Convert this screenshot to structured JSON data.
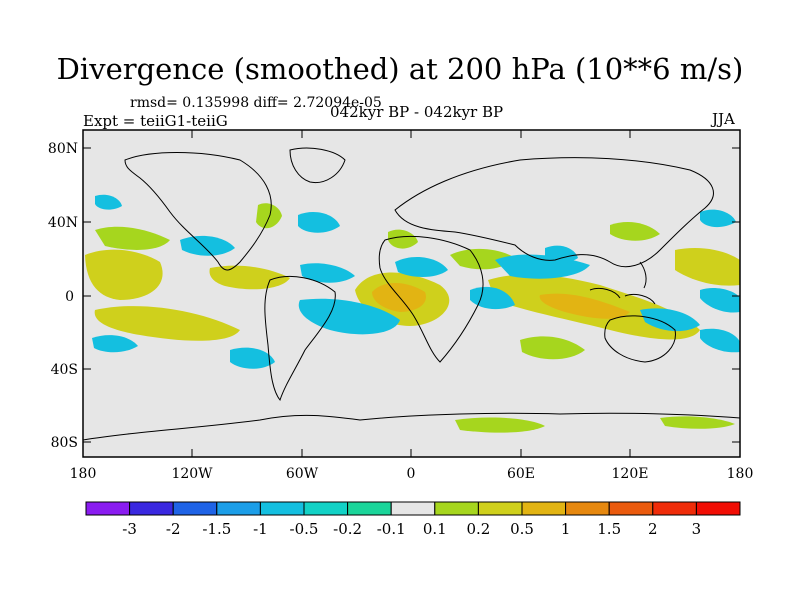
{
  "title": "Divergence (smoothed) at 200 hPa (10**6 m/s)",
  "stats": "rmsd= 0.135998 diff= 2.72094e-05",
  "expt": "Expt = teiiG1-teiiG",
  "center_label": "042kyr BP - 042kyr BP",
  "season": "JJA",
  "y_ticks": [
    "80N",
    "40N",
    "0",
    "40S",
    "80S"
  ],
  "x_ticks": [
    "180",
    "120W",
    "60W",
    "0",
    "60E",
    "120E",
    "180"
  ],
  "colorbar": {
    "labels": [
      "-3",
      "-2",
      "-1.5",
      "-1",
      "-0.5",
      "-0.2",
      "-0.1",
      "0.1",
      "0.2",
      "0.5",
      "1",
      "1.5",
      "2",
      "3"
    ],
    "colors": [
      "#8a1cf0",
      "#3a28e0",
      "#1f63e6",
      "#1c9ee8",
      "#14bfe0",
      "#12d2c6",
      "#1bd59a",
      "#e6e6e6",
      "#a6d61e",
      "#cfd01c",
      "#e2b413",
      "#e6880f",
      "#ea5a0d",
      "#ef2c09",
      "#f10d04"
    ]
  },
  "palette": {
    "land_outline": "#000000",
    "background": "#e6e6e6"
  }
}
